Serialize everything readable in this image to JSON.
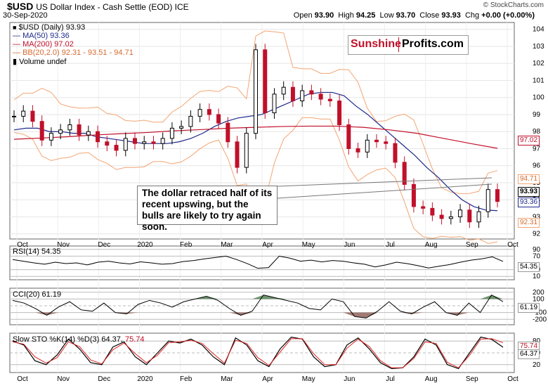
{
  "header": {
    "symbol": "$USD",
    "description": "US Dollar Index - Cash Settle (EOD) ICE",
    "date": "30-Sep-2020",
    "copyright": "© StockCharts.com",
    "open_label": "Open",
    "open": "93.90",
    "high_label": "High",
    "high": "94.25",
    "low_label": "Low",
    "low": "93.70",
    "close_label": "Close",
    "close": "93.93",
    "chg_label": "Chg",
    "chg": "+0.00 (+0.00%)"
  },
  "legend": {
    "price": "$USD (Daily) 93.93",
    "ma50": "MA(50) 93.36",
    "ma200": "MA(200) 97.02",
    "bb": "BB(20,2.0) 92.31 - 93.51 - 94.71",
    "volume": "Volume undef"
  },
  "logo": {
    "part1": "Sunshine",
    "part2": "Profits.com"
  },
  "annotation": "The dollar retraced half of its recent upswing, but the bulls are likely to try again soon.",
  "tags": {
    "ma200": "97.02",
    "bb_upper": "94.71",
    "close": "93.93",
    "ma50": "93.36",
    "bb_lower": "92.31"
  },
  "rsi": {
    "label": "RSI(14) 54.35",
    "value": "54.35"
  },
  "cci": {
    "label": "CCI(20) 61.19",
    "value": "61.19"
  },
  "sto": {
    "label": "Slow STO %K(14) %D(3) 64.37,",
    "d_value": "75.74",
    "k_value": "64.37"
  },
  "colors": {
    "ma50": "#1f2a8a",
    "ma200": "#c0102a",
    "bb": "#f3a573",
    "up": "#000000",
    "down": "#c0102a",
    "area_pos": "#4a7a4a",
    "area_neg": "#8a5a50",
    "d_line": "#e02020"
  },
  "chart_data": [
    {
      "type": "candlestick",
      "title": "$USD US Dollar Index - Cash Settle (EOD) ICE",
      "x_labels": [
        "Oct",
        "Nov",
        "Dec",
        "2020",
        "Feb",
        "Mar",
        "Apr",
        "May",
        "Jun",
        "Jul",
        "Aug",
        "Sep",
        "Oct"
      ],
      "y_ticks": [
        92,
        93,
        94,
        95,
        96,
        97,
        98,
        99,
        100,
        101,
        102,
        103,
        104
      ],
      "ylim": [
        91.7,
        104.4
      ],
      "close_weekly": [
        98.9,
        99.2,
        98.6,
        97.5,
        97.9,
        98.1,
        98.4,
        97.8,
        98.0,
        97.4,
        97.2,
        96.9,
        97.6,
        97.3,
        97.4,
        97.3,
        97.6,
        98.2,
        98.3,
        98.9,
        99.3,
        99.0,
        98.5,
        97.4,
        95.9,
        97.9,
        102.8,
        99.1,
        100.2,
        100.6,
        99.8,
        100.4,
        100.2,
        99.9,
        99.8,
        98.4,
        97.0,
        96.8,
        97.5,
        97.4,
        97.3,
        96.2,
        94.9,
        93.6,
        93.5,
        93.1,
        92.9,
        93.0,
        93.4,
        92.7,
        93.3,
        94.6,
        93.9
      ],
      "ma50": [
        98.1,
        98.2,
        98.2,
        98.0,
        98.0,
        97.9,
        97.9,
        97.7,
        97.6,
        97.5,
        97.4,
        97.3,
        97.3,
        97.3,
        97.4,
        97.6,
        97.9,
        98.3,
        98.6,
        98.8,
        98.9,
        99.0,
        99.3,
        99.6,
        99.9,
        100.2,
        100.3,
        100.3,
        100.1,
        99.5,
        99.0,
        98.4,
        97.8,
        97.2,
        96.6,
        95.9,
        95.3,
        94.6,
        94.0,
        93.6,
        93.4,
        93.36
      ],
      "ma200": [
        97.55,
        97.62,
        97.7,
        97.8,
        97.88,
        97.95,
        98.05,
        98.12,
        98.2,
        98.25,
        98.3,
        98.32,
        98.32,
        98.25,
        98.1,
        97.9,
        97.6,
        97.3,
        97.02
      ],
      "bb": {
        "upper": 94.71,
        "middle": 93.51,
        "lower": 92.31
      },
      "ma50_last": 93.36,
      "ma200_last": 97.02,
      "close": 93.93
    },
    {
      "type": "line",
      "title": "RSI(14) 54.35",
      "y_ticks": [
        10,
        30,
        70,
        90
      ],
      "ylim": [
        0,
        100
      ],
      "values": [
        60,
        55,
        50,
        46,
        52,
        48,
        50,
        44,
        52,
        55,
        50,
        47,
        53,
        50,
        46,
        48,
        54,
        57,
        62,
        66,
        70,
        60,
        48,
        34,
        36,
        70,
        64,
        55,
        58,
        53,
        57,
        55,
        50,
        46,
        38,
        44,
        52,
        48,
        42,
        35,
        40,
        45,
        52,
        58,
        62,
        68,
        54.35
      ]
    },
    {
      "type": "line",
      "title": "CCI(20) 61.19",
      "y_ticks": [
        -200,
        -100,
        0,
        100,
        200
      ],
      "ylim": [
        -280,
        260
      ],
      "values": [
        80,
        40,
        -40,
        -140,
        -20,
        60,
        -60,
        -80,
        40,
        -100,
        -120,
        20,
        80,
        40,
        -20,
        60,
        100,
        140,
        80,
        -40,
        -140,
        -80,
        160,
        120,
        80,
        40,
        -40,
        -60,
        100,
        60,
        -160,
        -180,
        -80,
        60,
        -80,
        -120,
        -20,
        60,
        -100,
        -140,
        40,
        -100,
        160,
        61.19
      ]
    },
    {
      "type": "line",
      "title": "Slow STO %K(14) %D(3)",
      "y_ticks": [
        20,
        50,
        80
      ],
      "ylim": [
        0,
        100
      ],
      "series": [
        {
          "name": "%K(14)",
          "values": [
            80,
            70,
            30,
            20,
            45,
            85,
            60,
            25,
            20,
            65,
            78,
            40,
            20,
            50,
            80,
            75,
            85,
            70,
            40,
            20,
            88,
            70,
            30,
            15,
            60,
            90,
            85,
            40,
            15,
            20,
            70,
            88,
            60,
            25,
            10,
            12,
            40,
            85,
            70,
            20,
            10,
            50,
            90,
            84,
            64.37
          ]
        },
        {
          "name": "%D(3)",
          "values": [
            78,
            72,
            40,
            24,
            38,
            78,
            66,
            32,
            22,
            58,
            75,
            48,
            25,
            44,
            76,
            78,
            82,
            74,
            48,
            24,
            82,
            74,
            38,
            18,
            52,
            86,
            86,
            48,
            20,
            20,
            62,
            85,
            66,
            30,
            12,
            12,
            36,
            78,
            74,
            26,
            12,
            44,
            85,
            86,
            75.74
          ]
        }
      ]
    }
  ]
}
